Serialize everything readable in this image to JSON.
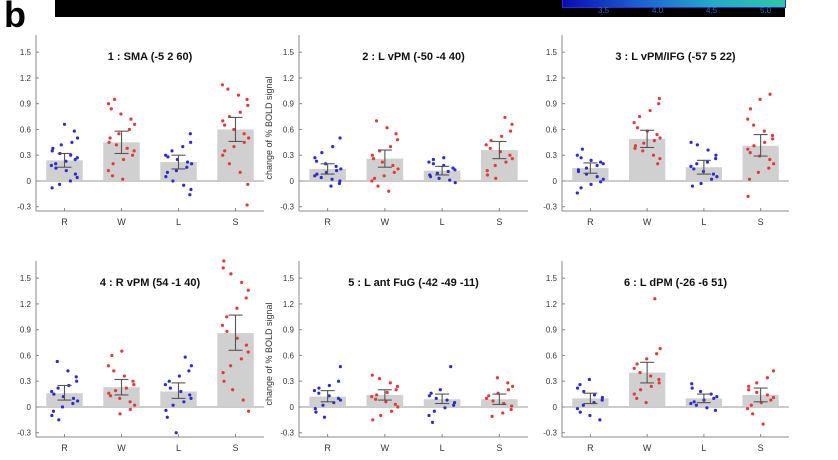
{
  "figure": {
    "panel_letter": "b",
    "colorbar_ticks": [
      "3.5",
      "4.0",
      "4.5",
      "5.0"
    ],
    "colors": {
      "bar": "#d0d0d0",
      "errorbar": "#555555",
      "dots_left": "#2b2bd6",
      "dots_right": "#e23a3a",
      "colorbar": [
        "#0b0bb0",
        "#1c5fd0",
        "#25a8c8",
        "#2ec7a3"
      ]
    }
  },
  "chart_data": [
    {
      "type": "bar",
      "title": "1 : SMA (-5 2 60)",
      "ylabel": "",
      "categories": [
        "R",
        "W",
        "L",
        "S"
      ],
      "ylim": [
        -0.35,
        1.7
      ],
      "yticks": [
        "-0.3",
        "0",
        "0.3",
        "0.6",
        "0.9",
        "1.2",
        "1.5"
      ],
      "values": [
        0.24,
        0.45,
        0.22,
        0.6
      ],
      "ci_low": [
        0.16,
        0.32,
        0.14,
        0.46
      ],
      "ci_high": [
        0.32,
        0.58,
        0.3,
        0.74
      ],
      "points": [
        [
          0.66,
          0.58,
          0.5,
          0.45,
          0.42,
          0.38,
          0.35,
          0.32,
          0.3,
          0.27,
          0.25,
          0.23,
          0.2,
          0.18,
          0.15,
          0.12,
          0.08,
          0.04,
          0.0,
          -0.04,
          -0.08
        ],
        [
          0.95,
          0.9,
          0.84,
          0.78,
          0.72,
          0.66,
          0.6,
          0.55,
          0.5,
          0.45,
          0.42,
          0.38,
          0.35,
          0.3,
          0.25,
          0.2,
          0.12,
          0.06,
          0.02
        ],
        [
          0.55,
          0.45,
          0.4,
          0.35,
          0.3,
          0.28,
          0.25,
          0.22,
          0.2,
          0.16,
          0.12,
          0.1,
          0.05,
          0.0,
          -0.05,
          -0.1,
          -0.16
        ],
        [
          1.12,
          1.07,
          1.0,
          0.95,
          0.88,
          0.8,
          0.75,
          0.7,
          0.65,
          0.6,
          0.55,
          0.5,
          0.45,
          0.4,
          0.35,
          0.3,
          0.2,
          0.1,
          -0.04,
          -0.28
        ]
      ]
    },
    {
      "type": "bar",
      "title": "2 : L vPM (-50 -4 40)",
      "ylabel": "change of % BOLD signal",
      "categories": [
        "R",
        "W",
        "L",
        "S"
      ],
      "ylim": [
        -0.35,
        1.7
      ],
      "yticks": [
        "-0.3",
        "0",
        "0.3",
        "0.6",
        "0.9",
        "1.2",
        "1.5"
      ],
      "values": [
        0.14,
        0.26,
        0.12,
        0.36
      ],
      "ci_low": [
        0.08,
        0.16,
        0.07,
        0.26
      ],
      "ci_high": [
        0.2,
        0.36,
        0.17,
        0.46
      ],
      "points": [
        [
          0.5,
          0.4,
          0.33,
          0.27,
          0.23,
          0.2,
          0.17,
          0.14,
          0.12,
          0.1,
          0.08,
          0.06,
          0.04,
          0.02,
          0.0,
          -0.03,
          -0.06
        ],
        [
          0.7,
          0.62,
          0.55,
          0.48,
          0.4,
          0.35,
          0.3,
          0.26,
          0.22,
          0.18,
          0.14,
          0.1,
          0.06,
          0.03,
          0.0,
          -0.06,
          -0.12
        ],
        [
          0.27,
          0.25,
          0.22,
          0.2,
          0.18,
          0.15,
          0.13,
          0.11,
          0.09,
          0.07,
          0.05,
          0.03,
          0.01,
          -0.02
        ],
        [
          0.74,
          0.66,
          0.58,
          0.52,
          0.47,
          0.42,
          0.38,
          0.34,
          0.3,
          0.26,
          0.22,
          0.18,
          0.12,
          0.07,
          0.03
        ]
      ]
    },
    {
      "type": "bar",
      "title": "3 : L vPM/IFG (-57 5 22)",
      "ylabel": "",
      "categories": [
        "R",
        "W",
        "L",
        "S"
      ],
      "ylim": [
        -0.35,
        1.7
      ],
      "yticks": [
        "-0.3",
        "0",
        "0.3",
        "0.6",
        "0.9",
        "1.2",
        "1.5"
      ],
      "values": [
        0.15,
        0.49,
        0.16,
        0.41
      ],
      "ci_low": [
        0.09,
        0.39,
        0.08,
        0.29
      ],
      "ci_high": [
        0.21,
        0.59,
        0.24,
        0.54
      ],
      "points": [
        [
          0.37,
          0.3,
          0.27,
          0.24,
          0.22,
          0.2,
          0.18,
          0.15,
          0.13,
          0.11,
          0.08,
          0.05,
          0.02,
          -0.01,
          -0.04,
          -0.08,
          -0.14
        ],
        [
          0.96,
          0.9,
          0.82,
          0.75,
          0.68,
          0.62,
          0.58,
          0.54,
          0.5,
          0.47,
          0.44,
          0.41,
          0.38,
          0.35,
          0.3,
          0.26,
          0.2
        ],
        [
          0.45,
          0.42,
          0.36,
          0.3,
          0.26,
          0.22,
          0.2,
          0.17,
          0.14,
          0.11,
          0.08,
          0.05,
          0.02,
          -0.03,
          -0.06
        ],
        [
          1.01,
          0.95,
          0.84,
          0.72,
          0.65,
          0.58,
          0.53,
          0.49,
          0.45,
          0.41,
          0.37,
          0.33,
          0.29,
          0.25,
          0.2,
          0.15,
          0.1,
          0.02,
          -0.18
        ]
      ]
    },
    {
      "type": "bar",
      "title": "4 : R vPM (54 -1 40)",
      "ylabel": "",
      "categories": [
        "R",
        "W",
        "L",
        "S"
      ],
      "ylim": [
        -0.35,
        1.7
      ],
      "yticks": [
        "-0.3",
        "0",
        "0.3",
        "0.6",
        "0.9",
        "1.2",
        "1.5"
      ],
      "values": [
        0.16,
        0.23,
        0.18,
        0.86
      ],
      "ci_low": [
        0.08,
        0.14,
        0.1,
        0.66
      ],
      "ci_high": [
        0.25,
        0.32,
        0.28,
        1.07
      ],
      "points": [
        [
          0.53,
          0.42,
          0.35,
          0.3,
          0.25,
          0.22,
          0.18,
          0.15,
          0.12,
          0.1,
          0.07,
          0.04,
          0.0,
          -0.05,
          -0.1,
          -0.15
        ],
        [
          0.65,
          0.6,
          0.48,
          0.42,
          0.36,
          0.3,
          0.26,
          0.22,
          0.19,
          0.16,
          0.13,
          0.1,
          0.06,
          0.02,
          -0.03,
          -0.08
        ],
        [
          0.58,
          0.48,
          0.42,
          0.36,
          0.3,
          0.26,
          0.22,
          0.18,
          0.14,
          0.1,
          0.06,
          0.02,
          -0.04,
          -0.12,
          -0.3
        ],
        [
          1.7,
          1.62,
          1.55,
          1.45,
          1.36,
          1.27,
          1.15,
          1.05,
          0.95,
          0.88,
          0.8,
          0.72,
          0.64,
          0.56,
          0.48,
          0.4,
          0.3,
          0.2,
          0.08,
          -0.05
        ]
      ]
    },
    {
      "type": "bar",
      "title": "5 : L ant FuG (-42 -49 -11)",
      "ylabel": "change of % BOLD signal",
      "categories": [
        "R",
        "W",
        "L",
        "S"
      ],
      "ylim": [
        -0.35,
        1.7
      ],
      "yticks": [
        "-0.3",
        "0",
        "0.3",
        "0.6",
        "0.9",
        "1.2",
        "1.5"
      ],
      "values": [
        0.12,
        0.14,
        0.09,
        0.09
      ],
      "ci_low": [
        0.06,
        0.08,
        0.04,
        0.03
      ],
      "ci_high": [
        0.19,
        0.2,
        0.15,
        0.15
      ],
      "points": [
        [
          0.47,
          0.3,
          0.25,
          0.22,
          0.19,
          0.16,
          0.13,
          0.1,
          0.08,
          0.05,
          0.02,
          -0.02,
          -0.06,
          -0.12
        ],
        [
          0.37,
          0.33,
          0.28,
          0.24,
          0.2,
          0.17,
          0.14,
          0.12,
          0.09,
          0.06,
          0.03,
          0.0,
          -0.05,
          -0.1,
          -0.15
        ],
        [
          0.47,
          0.2,
          0.16,
          0.13,
          0.1,
          0.08,
          0.05,
          0.02,
          -0.01,
          -0.05,
          -0.1,
          -0.18
        ],
        [
          0.34,
          0.28,
          0.24,
          0.2,
          0.16,
          0.13,
          0.1,
          0.07,
          0.04,
          0.01,
          -0.03,
          -0.07,
          -0.11
        ]
      ]
    },
    {
      "type": "bar",
      "title": "6 : L dPM (-26 -6 51)",
      "ylabel": "",
      "categories": [
        "R",
        "W",
        "L",
        "S"
      ],
      "ylim": [
        -0.35,
        1.7
      ],
      "yticks": [
        "-0.3",
        "0",
        "0.3",
        "0.6",
        "0.9",
        "1.2",
        "1.5"
      ],
      "values": [
        0.1,
        0.4,
        0.1,
        0.14
      ],
      "ci_low": [
        0.04,
        0.28,
        0.05,
        0.06
      ],
      "ci_high": [
        0.16,
        0.52,
        0.15,
        0.22
      ],
      "points": [
        [
          0.32,
          0.26,
          0.22,
          0.18,
          0.14,
          0.11,
          0.08,
          0.05,
          0.02,
          -0.02,
          -0.06,
          -0.1,
          -0.15
        ],
        [
          1.26,
          0.68,
          0.62,
          0.56,
          0.5,
          0.45,
          0.4,
          0.36,
          0.32,
          0.28,
          0.24,
          0.2,
          0.15,
          0.1,
          0.05
        ],
        [
          0.27,
          0.22,
          0.18,
          0.15,
          0.12,
          0.1,
          0.08,
          0.06,
          0.04,
          0.02,
          -0.01,
          -0.04
        ],
        [
          0.42,
          0.34,
          0.28,
          0.24,
          0.2,
          0.17,
          0.14,
          0.11,
          0.08,
          0.05,
          0.02,
          -0.02,
          -0.08,
          -0.2
        ]
      ]
    }
  ]
}
